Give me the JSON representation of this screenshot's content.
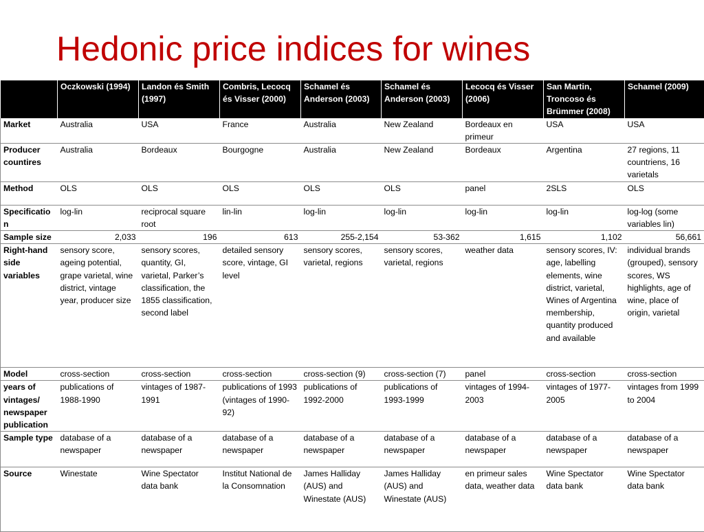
{
  "title": "Hedonic price indices for wines",
  "columns": [
    "",
    "Oczkowski (1994)",
    "Landon és Smith (1997)",
    "Combris, Lecocq és Visser (2000)",
    "Schamel és Anderson (2003)",
    "Schamel és Anderson (2003)",
    "Lecocq és Visser (2006)",
    "San Martin, Troncoso és Brümmer (2008)",
    "Schamel (2009)"
  ],
  "rows": [
    {
      "label": "Market",
      "cells": [
        "Australia",
        "USA",
        "France",
        "Australia",
        "New Zealand",
        "Bordeaux en primeur",
        "USA",
        "USA"
      ]
    },
    {
      "label": "Producer countires",
      "cells": [
        "Australia",
        "Bordeaux",
        "Bourgogne",
        "Australia",
        "New Zealand",
        "Bordeaux",
        "Argentina",
        "27 regions, 11 countriens, 16 varietals"
      ]
    },
    {
      "label": "Method",
      "cells": [
        "OLS",
        "OLS",
        "OLS",
        "OLS",
        "OLS",
        "panel",
        "2SLS",
        "OLS"
      ]
    },
    {
      "label": "Specificatio n",
      "cells": [
        "log-lin",
        "reciprocal square root",
        "lin-lin",
        "log-lin",
        "log-lin",
        "log-lin",
        "log-lin",
        "log-log (some variables lin)"
      ]
    },
    {
      "label": "Sample size",
      "numeric": true,
      "cells": [
        "2,033",
        "196",
        "613",
        "255-2,154",
        "53-362",
        "1,615",
        "1,102",
        "56,661"
      ]
    },
    {
      "label": "Right-hand side variables",
      "cells": [
        "sensory score, ageing potential, grape varietal, wine district, vintage year, producer size",
        "sensory scores, quantity, GI, varietal, Parker’s classification, the 1855 classification, second label",
        "detailed sensory score, vintage, GI level",
        "sensory scores, varietal, regions",
        "sensory scores, varietal, regions",
        "weather data",
        "sensory scores, IV: age, labelling elements, wine district, varietal, Wines of Argentina membership, quantity produced and available",
        "individual brands (grouped), sensory scores, WS highlights, age of wine, place of origin, varietal"
      ]
    },
    {
      "label": "Model",
      "cells": [
        "cross-section",
        "cross-section",
        "cross-section",
        "cross-section (9)",
        "cross-section (7)",
        "panel",
        "cross-section",
        "cross-section"
      ]
    },
    {
      "label": "years of vintages/ newspaper publication",
      "cells": [
        "publications of 1988-1990",
        "vintages of 1987-1991",
        "publications of 1993 (vintages of 1990-92)",
        "publications of 1992-2000",
        "publications of 1993-1999",
        "vintages of 1994-2003",
        "vintages of 1977-2005",
        "vintages from 1999 to 2004"
      ]
    },
    {
      "label": "Sample type",
      "cells": [
        "database of a newspaper",
        "database of a newspaper",
        "database of a newspaper",
        "database of a newspaper",
        "database of a newspaper",
        "database of a newspaper",
        "database of a newspaper",
        "database of a newspaper"
      ]
    },
    {
      "label": "Source",
      "cells": [
        "Winestate",
        "Wine Spectator data bank",
        "Institut National de la Consomnation",
        "James Halliday (AUS) and Winestate (AUS)",
        "James Halliday (AUS) and Winestate (AUS)",
        "en primeur sales data, weather data",
        "Wine Spectator data bank",
        "Wine Spectator data bank"
      ]
    }
  ]
}
